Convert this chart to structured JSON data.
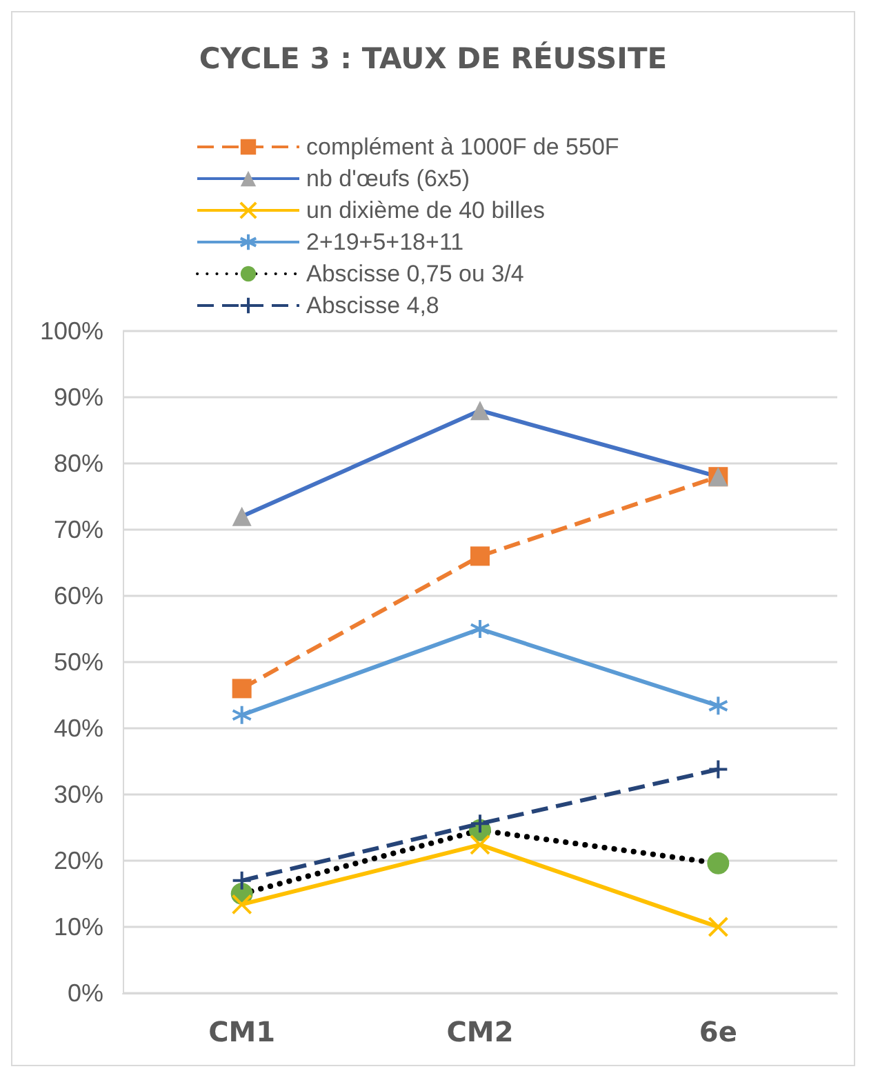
{
  "chart_data": {
    "type": "line",
    "title": "CYCLE 3 : TAUX DE RÉUSSITE",
    "categories": [
      "CM1",
      "CM2",
      "6e"
    ],
    "series": [
      {
        "name": "complément à 1000F de 550F",
        "color": "#ed7d31",
        "marker": "square",
        "line_style": "dashed",
        "values": [
          46,
          66,
          78
        ]
      },
      {
        "name": "nb d'œufs (6x5)",
        "color": "#4472c4",
        "marker": "triangle",
        "line_style": "solid",
        "values": [
          72,
          88,
          78
        ]
      },
      {
        "name": "un dixième de 40 billes",
        "color": "#ffc000",
        "marker": "cross",
        "line_style": "solid",
        "values": [
          13.4,
          22.4,
          10
        ]
      },
      {
        "name": "2+19+5+18+11",
        "color": "#5b9bd5",
        "marker": "cross",
        "line_style": "solid",
        "values": [
          42,
          55,
          43.4
        ]
      },
      {
        "name": "Abscisse 0,75 ou 3/4",
        "color": "#000000",
        "marker": "circle",
        "line_style": "dotted",
        "values": [
          15,
          24.6,
          19.6
        ]
      },
      {
        "name": "Abscisse 4,8",
        "color": "#264478",
        "marker": "cross",
        "line_style": "dashed",
        "values": [
          17,
          25.6,
          33.8
        ]
      }
    ],
    "ylim": [
      0,
      100
    ],
    "yticks": [
      {
        "value": 0,
        "label": "0%"
      },
      {
        "value": 10,
        "label": "10%"
      },
      {
        "value": 20,
        "label": "20%"
      },
      {
        "value": 30,
        "label": "30%"
      },
      {
        "value": 40,
        "label": "40%"
      },
      {
        "value": 50,
        "label": "50%"
      },
      {
        "value": 60,
        "label": "60%"
      },
      {
        "value": 70,
        "label": "70%"
      },
      {
        "value": 80,
        "label": "80%"
      },
      {
        "value": 90,
        "label": "90%"
      },
      {
        "value": 100,
        "label": "100%"
      }
    ],
    "grid": "y",
    "legend": "top"
  }
}
